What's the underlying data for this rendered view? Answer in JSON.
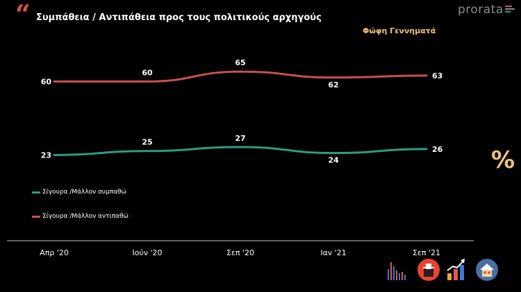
{
  "header": {
    "quote_glyph": "“",
    "title": "Συμπάθεια / Αντιπάθεια προς τους πολιτικούς αρχηγούς",
    "brand": "prorata"
  },
  "subtitle": "Φώφη Γεννηματά",
  "percent_symbol": "%",
  "colors": {
    "sympathy": "#2e9c83",
    "antipathy": "#c9504e",
    "accent": "#f0c27b",
    "background": "#000000"
  },
  "legend": {
    "sympathy_label": "Σίγουρα /Μάλλον συμπαθώ",
    "antipathy_label": "Σίγουρα /Μάλλον αντιπαθώ"
  },
  "chart_data": {
    "type": "line",
    "title": "Συμπάθεια / Αντιπάθεια προς τους πολιτικούς αρχηγούς",
    "subtitle": "Φώφη Γεννηματά",
    "categories": [
      "Απρ '20",
      "Ιούν '20",
      "Σεπ '20",
      "Ιαν '21",
      "Σεπ '21"
    ],
    "series": [
      {
        "name": "Σίγουρα /Μάλλον αντιπαθώ",
        "values": [
          60,
          60,
          65,
          62,
          63
        ]
      },
      {
        "name": "Σίγουρα /Μάλλον συμπαθώ",
        "values": [
          23,
          25,
          27,
          24,
          26
        ]
      }
    ],
    "xlabel": "",
    "ylabel": "%",
    "ylim": [
      0,
      100
    ],
    "grid": false,
    "legend_position": "bottom-left"
  },
  "icons": [
    "bar-chart-icon",
    "ballot-box-icon",
    "trend-up-icon",
    "home-family-icon"
  ]
}
